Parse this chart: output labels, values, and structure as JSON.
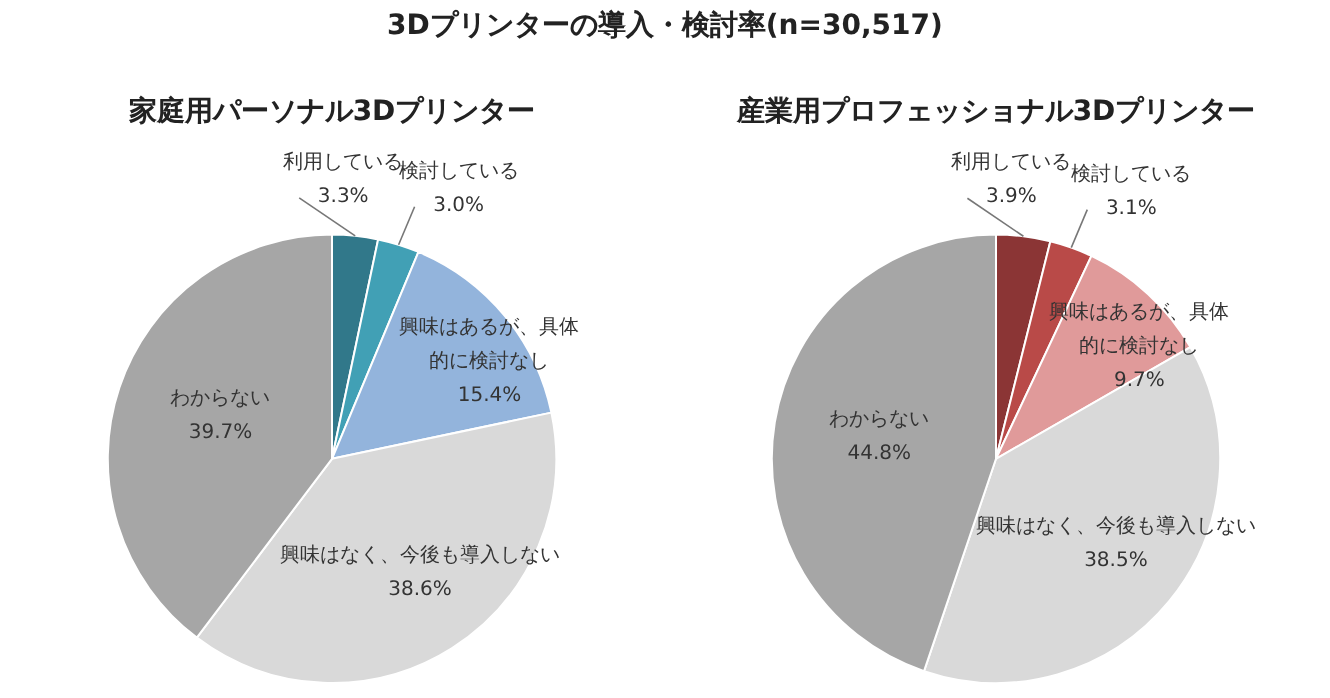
{
  "chart_data": [
    {
      "type": "other",
      "title": "3Dプリンターの導入・検討率(n=30,517)"
    },
    {
      "type": "pie",
      "title": "家庭用パーソナル3Dプリンター",
      "categories": [
        "利用している",
        "検討している",
        "興味はあるが、具体的に検討なし",
        "興味はなく、今後も導入しない",
        "わからない"
      ],
      "values": [
        3.3,
        3.0,
        15.4,
        38.6,
        39.7
      ],
      "value_labels": [
        "3.3%",
        "3.0%",
        "15.4%",
        "38.6%",
        "39.7%"
      ],
      "colors": [
        "#31788a",
        "#41a0b5",
        "#93b4dc",
        "#d9d9d9",
        "#a6a6a6"
      ]
    },
    {
      "type": "pie",
      "title": "産業用プロフェッショナル3Dプリンター",
      "categories": [
        "利用している",
        "検討している",
        "興味はあるが、具体的に検討なし",
        "興味はなく、今後も導入しない",
        "わからない"
      ],
      "values": [
        3.9,
        3.1,
        9.7,
        38.5,
        44.8
      ],
      "value_labels": [
        "3.9%",
        "3.1%",
        "9.7%",
        "38.5%",
        "44.8%"
      ],
      "colors": [
        "#8b3535",
        "#b94a48",
        "#e09a9a",
        "#d9d9d9",
        "#a6a6a6"
      ]
    }
  ]
}
